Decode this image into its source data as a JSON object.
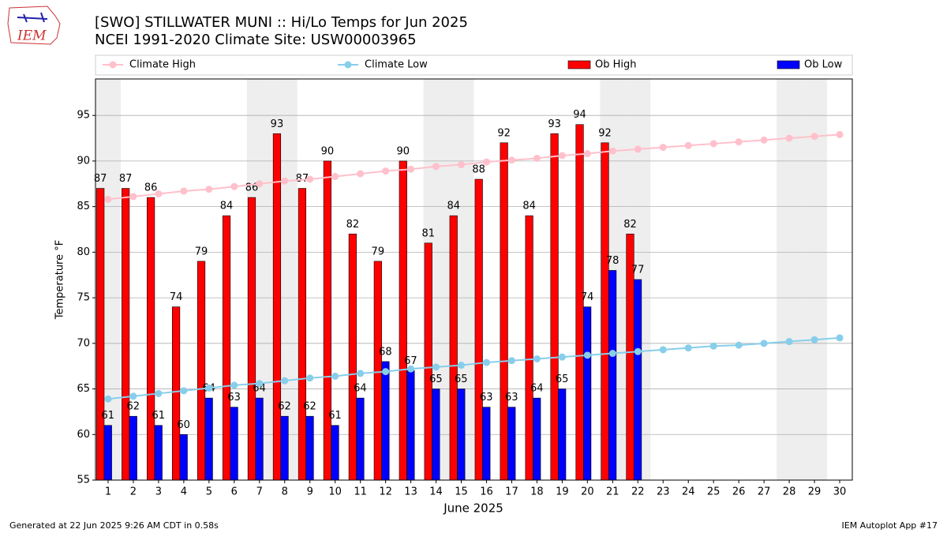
{
  "chart_data": {
    "type": "bar",
    "logo_text": "IEM",
    "title": "[SWO] STILLWATER MUNI :: Hi/Lo Temps for Jun 2025",
    "subtitle": "NCEI 1991-2020 Climate Site: USW00003965",
    "x_label": "June 2025",
    "y_label": "Temperature °F",
    "x": [
      1,
      2,
      3,
      4,
      5,
      6,
      7,
      8,
      9,
      10,
      11,
      12,
      13,
      14,
      15,
      16,
      17,
      18,
      19,
      20,
      21,
      22,
      23,
      24,
      25,
      26,
      27,
      28,
      29,
      30
    ],
    "xlim": [
      0.5,
      30.5
    ],
    "xticks": [
      1,
      2,
      3,
      4,
      5,
      6,
      7,
      8,
      9,
      10,
      11,
      12,
      13,
      14,
      15,
      16,
      17,
      18,
      19,
      20,
      21,
      22,
      23,
      24,
      25,
      26,
      27,
      28,
      29,
      30
    ],
    "ylim": [
      55,
      99
    ],
    "yticks": [
      55,
      60,
      65,
      70,
      75,
      80,
      85,
      90,
      95
    ],
    "grid": true,
    "shaded_days": [
      1,
      7,
      8,
      14,
      15,
      21,
      22,
      28,
      29
    ],
    "shade_color": "#eeeeee",
    "legend": "top",
    "series": [
      {
        "name": "Climate High",
        "kind": "line",
        "color": "#ffc0cb",
        "values": [
          85.8,
          86.1,
          86.4,
          86.7,
          86.9,
          87.2,
          87.5,
          87.8,
          88.0,
          88.3,
          88.6,
          88.9,
          89.1,
          89.4,
          89.6,
          89.9,
          90.1,
          90.3,
          90.6,
          90.8,
          91.1,
          91.3,
          91.5,
          91.7,
          91.9,
          92.1,
          92.3,
          92.5,
          92.7,
          92.9
        ]
      },
      {
        "name": "Climate Low",
        "kind": "line",
        "color": "#87ceeb",
        "values": [
          63.9,
          64.2,
          64.5,
          64.8,
          65.1,
          65.4,
          65.6,
          65.9,
          66.2,
          66.4,
          66.7,
          66.9,
          67.2,
          67.4,
          67.6,
          67.9,
          68.1,
          68.3,
          68.5,
          68.7,
          68.9,
          69.1,
          69.3,
          69.5,
          69.7,
          69.8,
          70.0,
          70.2,
          70.4,
          70.6
        ]
      },
      {
        "name": "Ob High",
        "kind": "bar",
        "color": "#ff0000",
        "values": [
          87,
          87,
          86,
          74,
          79,
          84,
          86,
          93,
          87,
          90,
          82,
          79,
          90,
          81,
          84,
          88,
          92,
          84,
          93,
          94,
          92,
          82,
          null,
          null,
          null,
          null,
          null,
          null,
          null,
          null
        ]
      },
      {
        "name": "Ob Low",
        "kind": "bar",
        "color": "#0000ff",
        "values": [
          61,
          62,
          61,
          60,
          64,
          63,
          64,
          62,
          62,
          61,
          64,
          68,
          67,
          65,
          65,
          63,
          63,
          64,
          65,
          74,
          78,
          77,
          null,
          null,
          null,
          null,
          null,
          null,
          null,
          null
        ]
      }
    ],
    "footer_left": "Generated at 22 Jun 2025 9:26 AM CDT in 0.58s",
    "footer_right": "IEM Autoplot App #17"
  }
}
